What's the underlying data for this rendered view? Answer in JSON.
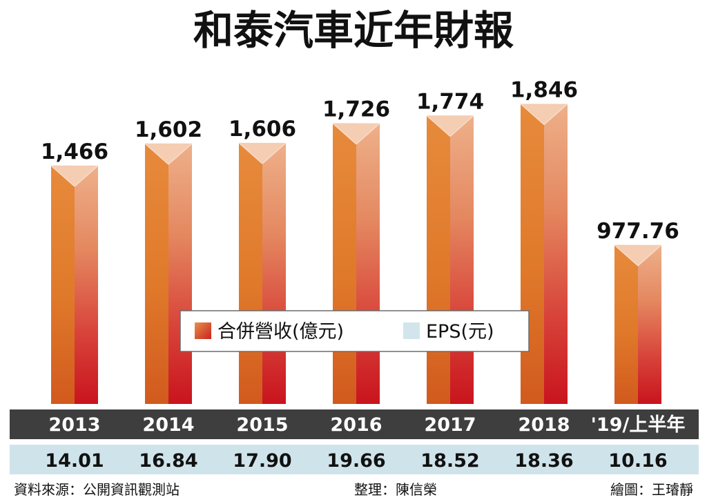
{
  "title": "和泰汽車近年財報",
  "legend": {
    "revenue": "合併營收(億元)",
    "eps": "EPS(元)"
  },
  "footer": {
    "source": "資料來源：公開資訊觀測站",
    "editor": "整理：陳信榮",
    "artist": "繪圖：王璿靜"
  },
  "colors": {
    "bar_light": "#E99A63",
    "bar_orange": "#E07B2A",
    "bar_red": "#C9141E",
    "year_row": "#3E3E3E",
    "eps_row": "#CFE3EA",
    "eps_legend_swatch": "#D2E5EC"
  },
  "chart_data": {
    "type": "bar",
    "title": "和泰汽車近年財報",
    "categories": [
      "2013",
      "2014",
      "2015",
      "2016",
      "2017",
      "2018",
      "'19/上半年"
    ],
    "series": [
      {
        "name": "合併營收(億元)",
        "values": [
          1466,
          1602,
          1606,
          1726,
          1774,
          1846,
          977.76
        ],
        "labels": [
          "1,466",
          "1,602",
          "1,606",
          "1,726",
          "1,774",
          "1,846",
          "977.76"
        ]
      },
      {
        "name": "EPS(元)",
        "values": [
          14.01,
          16.84,
          17.9,
          19.66,
          18.52,
          18.36,
          10.16
        ],
        "labels": [
          "14.01",
          "16.84",
          "17.90",
          "19.66",
          "18.52",
          "18.36",
          "10.16"
        ]
      }
    ],
    "grid": false,
    "legend_position": "center"
  }
}
